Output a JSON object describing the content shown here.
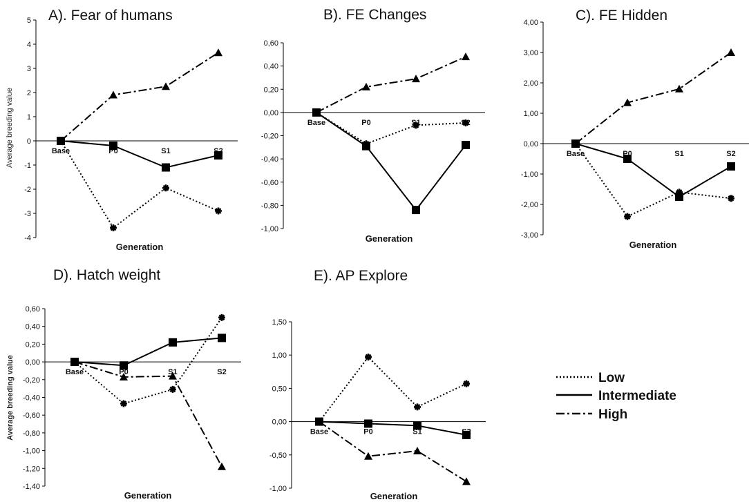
{
  "legend": [
    {
      "name": "Low",
      "style": "dotted"
    },
    {
      "name": "Intermediate",
      "style": "solid"
    },
    {
      "name": "High",
      "style": "dashdot"
    }
  ],
  "colors": {
    "line": "#000000",
    "background": "#ffffff"
  },
  "chart_data": [
    {
      "type": "line",
      "title": "A). Fear of humans",
      "xlabel": "Generation",
      "ylabel": "Average breeding value",
      "categories": [
        "Base",
        "P0",
        "S1",
        "S2"
      ],
      "yticks": [
        "-4",
        "-3",
        "-2",
        "-1",
        "0",
        "1",
        "2",
        "3",
        "4",
        "5"
      ],
      "ylim": [
        -4,
        5
      ],
      "series": [
        {
          "name": "Low",
          "values": [
            0,
            -3.6,
            -1.95,
            -2.9
          ]
        },
        {
          "name": "Intermediate",
          "values": [
            0,
            -0.2,
            -1.1,
            -0.6
          ]
        },
        {
          "name": "High",
          "values": [
            0,
            1.9,
            2.25,
            3.65
          ]
        }
      ]
    },
    {
      "type": "line",
      "title": "B). FE Changes",
      "xlabel": "Generation",
      "ylabel": "",
      "categories": [
        "Base",
        "P0",
        "S1",
        "S2"
      ],
      "yticks": [
        "-1,00",
        "-0,80",
        "-0,60",
        "-0,40",
        "-0,20",
        "0,00",
        "0,20",
        "0,40",
        "0,60"
      ],
      "ylim": [
        -1.0,
        0.6
      ],
      "series": [
        {
          "name": "Low",
          "values": [
            0,
            -0.27,
            -0.11,
            -0.09
          ]
        },
        {
          "name": "Intermediate",
          "values": [
            0,
            -0.29,
            -0.84,
            -0.28
          ]
        },
        {
          "name": "High",
          "values": [
            0,
            0.22,
            0.29,
            0.48
          ]
        }
      ]
    },
    {
      "type": "line",
      "title": "C). FE Hidden",
      "xlabel": "Generation",
      "ylabel": "",
      "categories": [
        "Base",
        "P0",
        "S1",
        "S2"
      ],
      "yticks": [
        "-3,00",
        "-2,00",
        "-1,00",
        "0,00",
        "1,00",
        "2,00",
        "3,00",
        "4,00"
      ],
      "ylim": [
        -3.0,
        4.0
      ],
      "series": [
        {
          "name": "Low",
          "values": [
            0,
            -2.4,
            -1.6,
            -1.8
          ]
        },
        {
          "name": "Intermediate",
          "values": [
            0,
            -0.5,
            -1.75,
            -0.75
          ]
        },
        {
          "name": "High",
          "values": [
            0,
            1.35,
            1.8,
            3.0
          ]
        }
      ]
    },
    {
      "type": "line",
      "title": "D). Hatch weight",
      "xlabel": "Generation",
      "ylabel": "Average breeding value",
      "categories": [
        "Base",
        "P0",
        "S1",
        "S2"
      ],
      "yticks": [
        "-1,40",
        "-1,20",
        "-1,00",
        "-0,80",
        "-0,60",
        "-0,40",
        "-0,20",
        "0,00",
        "0,20",
        "0,40",
        "0,60"
      ],
      "ylim": [
        -1.4,
        0.6
      ],
      "series": [
        {
          "name": "Low",
          "values": [
            0,
            -0.47,
            -0.31,
            0.5
          ]
        },
        {
          "name": "Intermediate",
          "values": [
            0,
            -0.04,
            0.22,
            0.27
          ]
        },
        {
          "name": "High",
          "values": [
            0,
            -0.17,
            -0.16,
            -1.18
          ]
        }
      ]
    },
    {
      "type": "line",
      "title": "E). AP Explore",
      "xlabel": "Generation",
      "ylabel": "",
      "categories": [
        "Base",
        "P0",
        "S1",
        "S2"
      ],
      "yticks": [
        "-1,00",
        "-0,50",
        "0,00",
        "0,50",
        "1,00",
        "1,50"
      ],
      "ylim": [
        -1.0,
        1.5
      ],
      "series": [
        {
          "name": "Low",
          "values": [
            0,
            0.97,
            0.22,
            0.57
          ]
        },
        {
          "name": "Intermediate",
          "values": [
            0,
            -0.03,
            -0.06,
            -0.2
          ]
        },
        {
          "name": "High",
          "values": [
            0,
            -0.52,
            -0.44,
            -0.9
          ]
        }
      ]
    }
  ]
}
